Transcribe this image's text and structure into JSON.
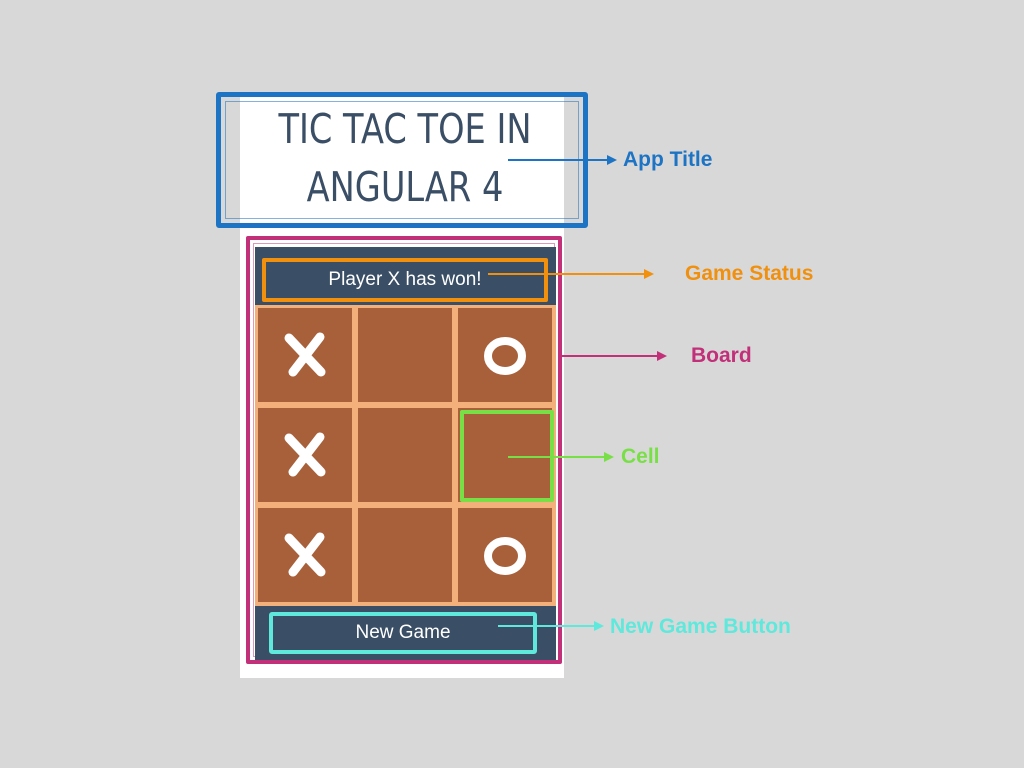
{
  "app": {
    "title_line1": "TIC TAC TOE IN",
    "title_line2": "ANGULAR 4"
  },
  "game": {
    "status": "Player X has won!",
    "new_game_label": "New Game",
    "board": [
      [
        "X",
        "",
        "O"
      ],
      [
        "X",
        "",
        ""
      ],
      [
        "X",
        "",
        "O"
      ]
    ]
  },
  "annotations": {
    "app_title": "App Title",
    "game_status": "Game Status",
    "board": "Board",
    "cell": "Cell",
    "new_game_button": "New Game Button"
  },
  "colors": {
    "background": "#d8d8d8",
    "title_text": "#3a4e66",
    "app_title_callout": "#1d74c4",
    "game_status_callout": "#f0900e",
    "board_callout": "#c2307a",
    "cell_callout": "#78e046",
    "new_game_callout": "#5fe8dc",
    "panel": "#3a4e66",
    "cell_fill": "#a8603a",
    "grid_lines": "#f3b07a"
  }
}
